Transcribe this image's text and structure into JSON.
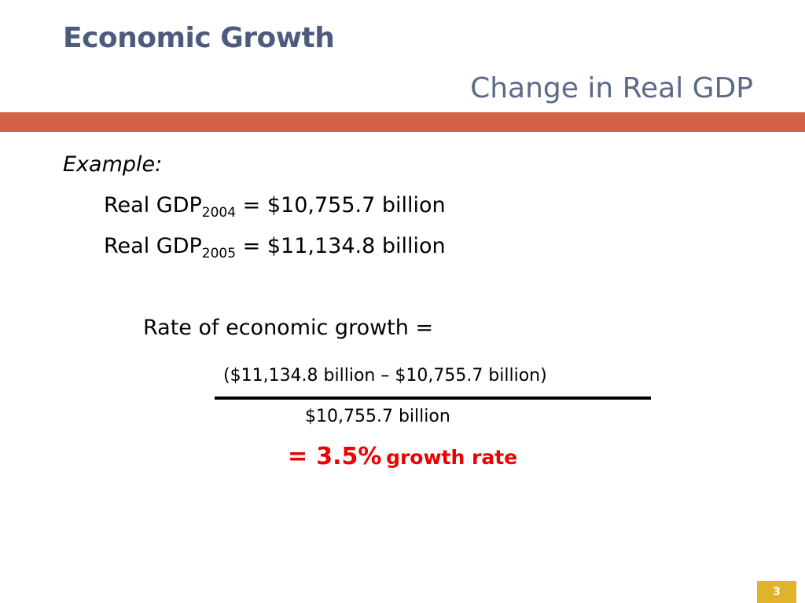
{
  "header": {
    "title": "Economic Growth",
    "subtitle": "Change in Real GDP",
    "accent_color": "#d46248"
  },
  "body": {
    "example_label": "Example:",
    "gdp_2004": {
      "prefix": "Real GDP",
      "year": "2004",
      "value": " = $10,755.7 billion"
    },
    "gdp_2005": {
      "prefix": "Real GDP",
      "year": "2005",
      "value": " = $11,134.8 billion"
    },
    "rate_label": "Rate of economic growth =",
    "numerator": "($11,134.8 billion – $10,755.7 billion)",
    "denominator": "$10,755.7 billion",
    "result_equals": "=",
    "result_value": "3.5%",
    "result_label": "growth rate",
    "result_color": "#ee0000"
  },
  "footer": {
    "page_number": "3",
    "badge_color": "#e1b32a"
  }
}
